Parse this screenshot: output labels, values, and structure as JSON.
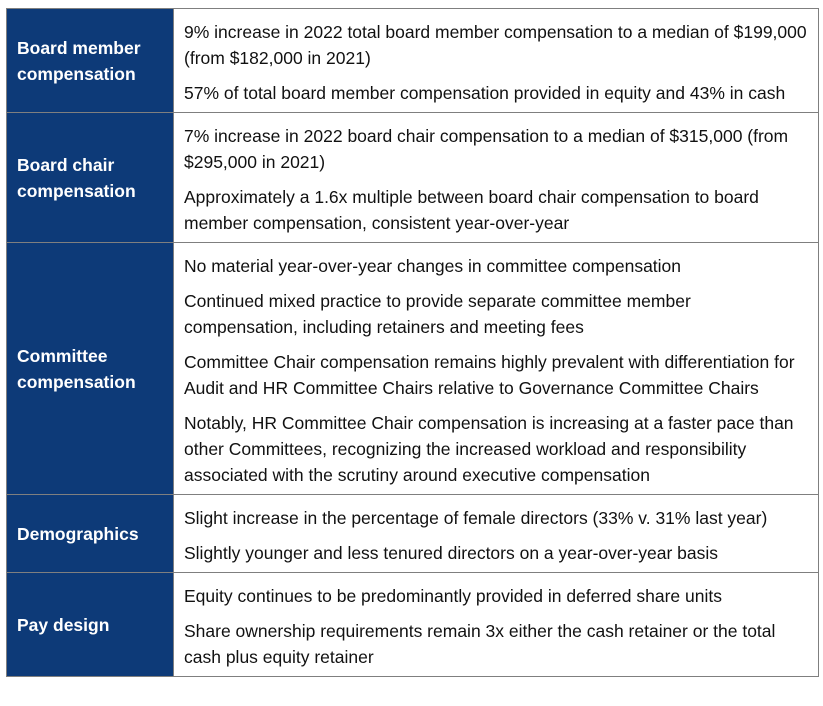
{
  "rows": [
    {
      "label": "Board member compensation",
      "points": [
        "9% increase in 2022 total board member compensation to a median of $199,000 (from $182,000 in 2021)",
        "57% of total board member compensation provided in equity and 43% in cash"
      ]
    },
    {
      "label": "Board chair compensation",
      "points": [
        "7% increase in 2022 board chair compensation to a median of $315,000 (from $295,000 in 2021)",
        "Approximately a 1.6x multiple between board chair compensation to board member compensation, consistent year-over-year"
      ]
    },
    {
      "label": "Committee compensation",
      "points": [
        "No material year-over-year changes in committee compensation",
        "Continued mixed practice to provide separate committee member compensation, including retainers and meeting fees",
        "Committee Chair compensation remains highly prevalent with differentiation for Audit and HR Committee Chairs relative to Governance Committee Chairs",
        "Notably, HR Committee Chair compensation is increasing at a faster pace than other Committees, recognizing the increased workload and responsibility associated with the scrutiny around executive compensation"
      ]
    },
    {
      "label": "Demographics",
      "points": [
        "Slight increase in the percentage of female directors (33% v. 31% last year)",
        "Slightly younger and less tenured directors on a year-over-year basis"
      ]
    },
    {
      "label": "Pay design",
      "points": [
        "Equity continues to be predominantly provided in deferred share units",
        "Share ownership requirements remain 3x either the cash retainer or the total cash plus equity retainer"
      ]
    }
  ],
  "colors": {
    "label_background": "#0d3a78",
    "label_text": "#ffffff",
    "border": "#7f7f7f"
  }
}
